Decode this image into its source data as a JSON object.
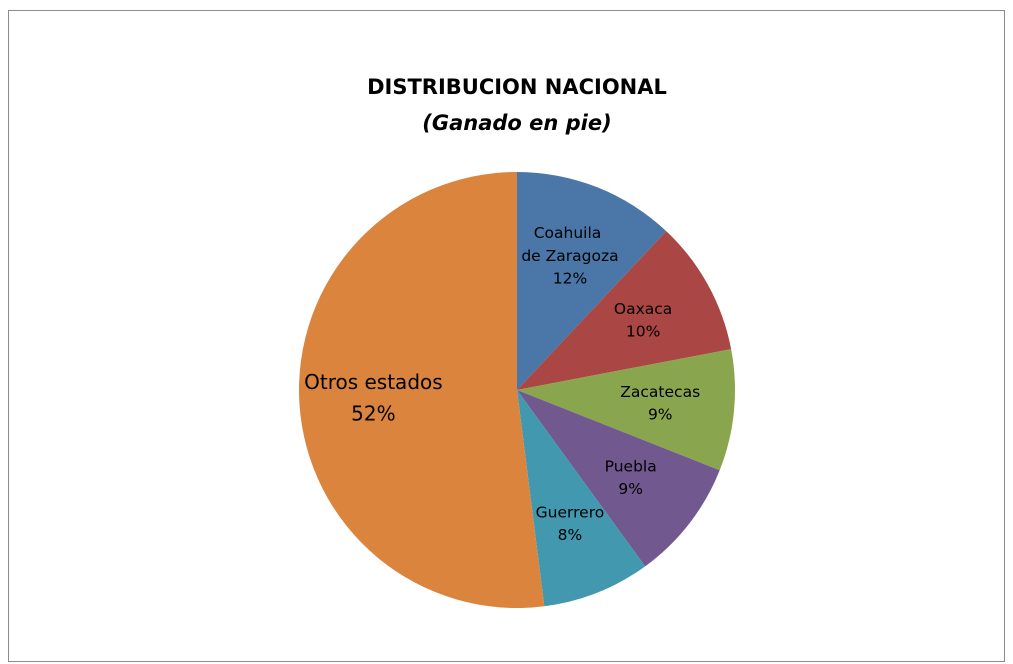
{
  "chart_data": {
    "type": "pie",
    "title": "DISTRIBUCION NACIONAL",
    "subtitle": "(Ganado en pie)",
    "categories": [
      "Coahuila de Zaragoza",
      "Oaxaca",
      "Zacatecas",
      "Puebla",
      "Guerrero",
      "Otros estados"
    ],
    "values": [
      12,
      10,
      9,
      9,
      8,
      52
    ],
    "value_labels": [
      "12%",
      "10%",
      "9%",
      "9%",
      "8%",
      "52%"
    ],
    "colors": [
      "#4a76a8",
      "#aa4643",
      "#89a54e",
      "#71588f",
      "#4198af",
      "#db843d"
    ]
  }
}
